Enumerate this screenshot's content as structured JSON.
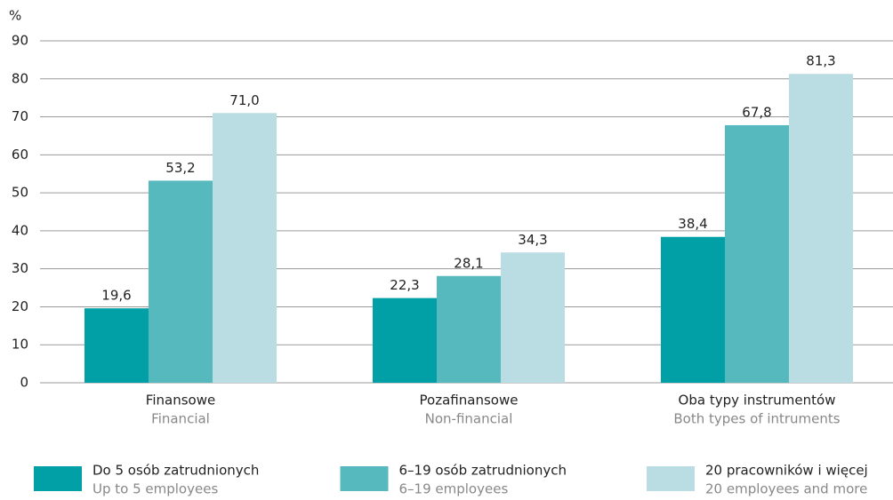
{
  "chart_data": {
    "type": "bar",
    "y_unit": "%",
    "categories": [
      "Finansowe",
      "Pozafinansowe",
      "Oba typy instrumentów"
    ],
    "categories_en": [
      "Financial",
      "Non-financial",
      "Both types of intruments"
    ],
    "series": [
      {
        "name": "Do 5 osób zatrudnionych",
        "name_en": "Up to 5 employees",
        "color": "#00a0a6",
        "values": [
          19.6,
          22.3,
          38.4
        ],
        "value_labels": [
          "19,6",
          "22,3",
          "38,4"
        ]
      },
      {
        "name": "6–19 osób zatrudnionych",
        "name_en": "6–19 employees",
        "color": "#55b9bd",
        "values": [
          53.2,
          28.1,
          67.8
        ],
        "value_labels": [
          "53,2",
          "28,1",
          "67,8"
        ]
      },
      {
        "name": "20 pracowników i więcej",
        "name_en": "20 employees and more",
        "color": "#b9dde2",
        "values": [
          71.0,
          34.3,
          81.3
        ],
        "value_labels": [
          "71,0",
          "34,3",
          "81,3"
        ]
      }
    ],
    "ylim": [
      0,
      90
    ],
    "yticks": [
      0,
      10,
      20,
      30,
      40,
      50,
      60,
      70,
      80,
      90
    ],
    "grid": true
  }
}
